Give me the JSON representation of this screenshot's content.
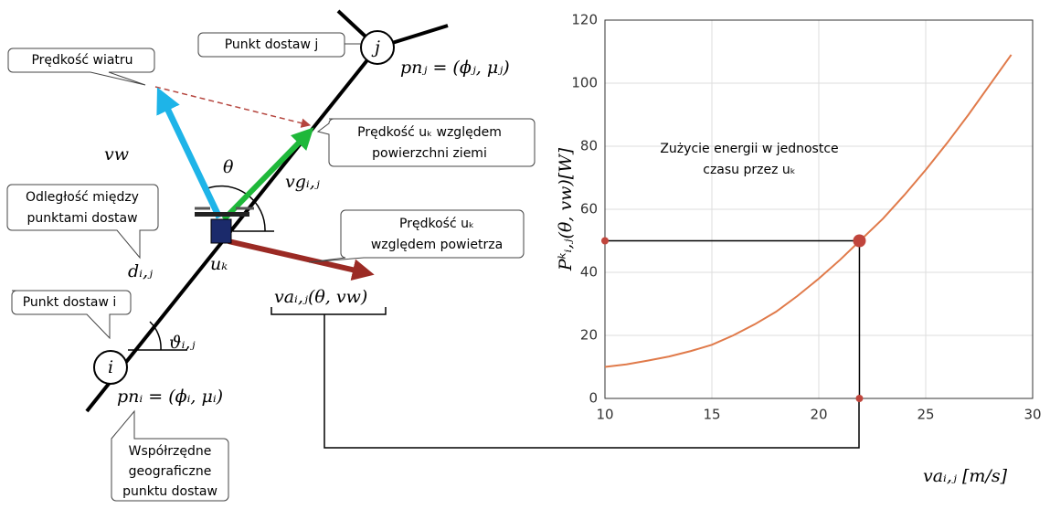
{
  "diagram": {
    "wind_callout": "Prędkość wiatru",
    "node_j_callout": "Punkt dostaw j",
    "ground_speed_callout": [
      "Prędkość uₖ względem",
      "powierzchni ziemi"
    ],
    "distance_callout": [
      "Odległość między",
      "punktami dostaw"
    ],
    "air_speed_callout": [
      "Prędkość uₖ",
      "względem powietrza"
    ],
    "node_i_callout": "Punkt dostaw i",
    "coordinates_callout": [
      "Współrzędne",
      "geograficzne",
      "punktu dostaw"
    ],
    "node_i": "i",
    "node_j": "j",
    "pn_i": "pnᵢ = (ϕᵢ, μᵢ)",
    "pn_j": "pnⱼ = (ϕⱼ, μⱼ)",
    "vw": "vw",
    "theta": "θ",
    "vg": "vgᵢ,ⱼ",
    "d": "dᵢ,ⱼ",
    "u": "uₖ",
    "va": "vaᵢ,ⱼ(θ, vw)",
    "vartheta": "ϑᵢ,ⱼ"
  },
  "chart_data": {
    "type": "line",
    "x": [
      10,
      11,
      12,
      13,
      14,
      15,
      16,
      17,
      18,
      19,
      20,
      21,
      22,
      23,
      24,
      25,
      26,
      27,
      28,
      29
    ],
    "series": [
      {
        "color": "#e07a4a",
        "values": [
          10,
          10.8,
          12,
          13.3,
          15,
          17,
          20,
          23.5,
          27.5,
          32.5,
          38,
          44,
          50.5,
          57,
          64.5,
          72.5,
          81,
          90,
          99.5,
          109
        ]
      }
    ],
    "xlim": [
      10,
      30
    ],
    "ylim": [
      0,
      120
    ],
    "xticks": [
      10,
      15,
      20,
      25,
      30
    ],
    "yticks": [
      0,
      20,
      40,
      60,
      80,
      100,
      120
    ],
    "grid": true,
    "x_label": "vaᵢ,ⱼ [m/s]",
    "y_label": "Pᵏᵢ,ⱼ(θ, vw)[W]",
    "annotation": [
      "Zużycie energii w jednostce",
      "czasu przez uₖ"
    ],
    "operating_point": {
      "x": 21.9,
      "y": 50
    }
  }
}
